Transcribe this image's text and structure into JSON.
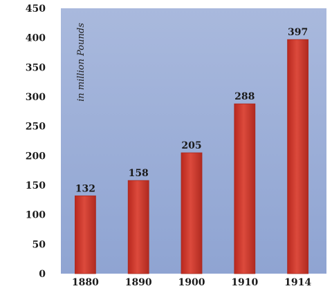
{
  "chart_data": {
    "type": "bar",
    "categories": [
      "1880",
      "1890",
      "1900",
      "1910",
      "1914"
    ],
    "values": [
      132,
      158,
      205,
      288,
      397
    ],
    "data_labels": [
      "132",
      "158",
      "205",
      "288",
      "397"
    ],
    "ylabel": "in million Pounds",
    "ylim": [
      0,
      450
    ],
    "yticks": [
      0,
      50,
      100,
      150,
      200,
      250,
      300,
      350,
      400,
      450
    ],
    "grid": false,
    "legend": "none",
    "colors": {
      "bar": "#cc3a2e",
      "bar_edge": "#a82a20",
      "plot_background_top": "#a9b9dd",
      "plot_background_bottom": "#8fa4d2"
    }
  }
}
